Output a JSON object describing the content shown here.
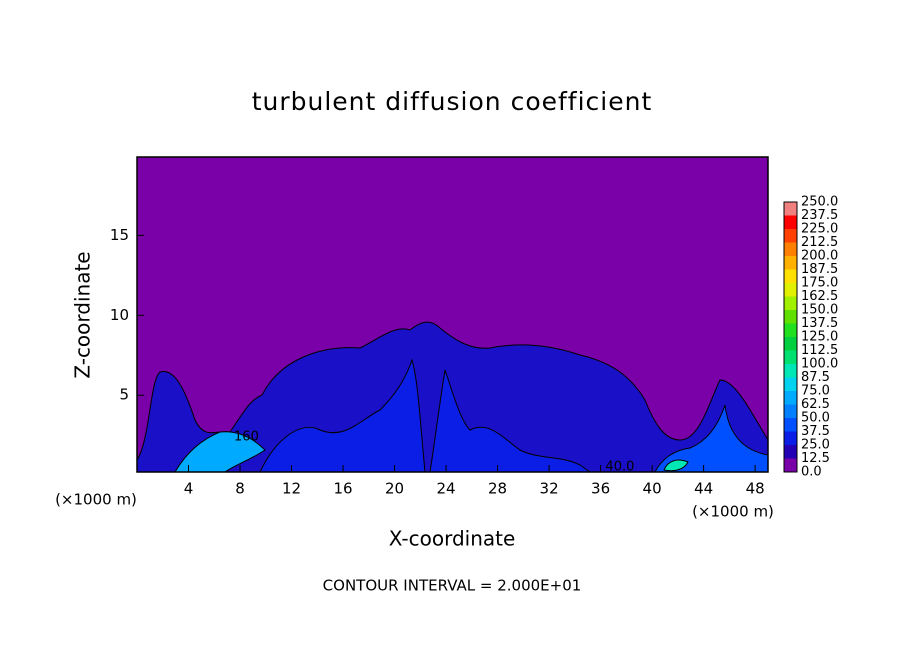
{
  "chart_data": {
    "type": "contour",
    "title": "turbulent diffusion coefficient",
    "xlabel": "X-coordinate",
    "ylabel": "Z-coordinate",
    "unit_labels": [
      "(×1000 m)",
      "(×1000 m)"
    ],
    "footer": "CONTOUR INTERVAL = 2.000E+01",
    "xlim": [
      0,
      49
    ],
    "ylim": [
      0.2,
      19.9
    ],
    "xticks": [
      4,
      8,
      12,
      16,
      20,
      24,
      28,
      32,
      36,
      40,
      44,
      48
    ],
    "yticks": [
      5,
      10,
      15
    ],
    "contour_labels": [
      {
        "text": "40.0",
        "x": 37.5,
        "z": 0.5
      },
      {
        "text": "160",
        "x": 8.5,
        "z": 2.4
      }
    ],
    "colorbar": {
      "levels": [
        {
          "value": 0,
          "label": "0.0"
        },
        12.5,
        {
          "value": 25,
          "label": "25.0"
        },
        37.5,
        {
          "value": 50,
          "label": "50.0"
        },
        62.5,
        {
          "value": 75,
          "label": "75.0"
        },
        87.5,
        {
          "value": 100,
          "label": "100.0"
        },
        112.5,
        {
          "value": 125,
          "label": "125.0"
        },
        137.5,
        {
          "value": 150,
          "label": "150.0"
        },
        162.5,
        {
          "value": 175,
          "label": "175.0"
        },
        187.5,
        {
          "value": 200,
          "label": "200.0"
        },
        212.5,
        {
          "value": 225,
          "label": "225.0"
        },
        237.5,
        {
          "value": 250,
          "label": "250.0"
        }
      ],
      "colors": [
        "#7a00a8",
        "#2400b4",
        "#0a1ee6",
        "#0050ff",
        "#0080ff",
        "#00aaff",
        "#00d2f0",
        "#00e6b4",
        "#00e070",
        "#00d040",
        "#20e020",
        "#60e000",
        "#a0f000",
        "#e0f000",
        "#ffe000",
        "#ffb000",
        "#ff8000",
        "#ff4000",
        "#ff0000",
        "#f08080"
      ]
    }
  }
}
